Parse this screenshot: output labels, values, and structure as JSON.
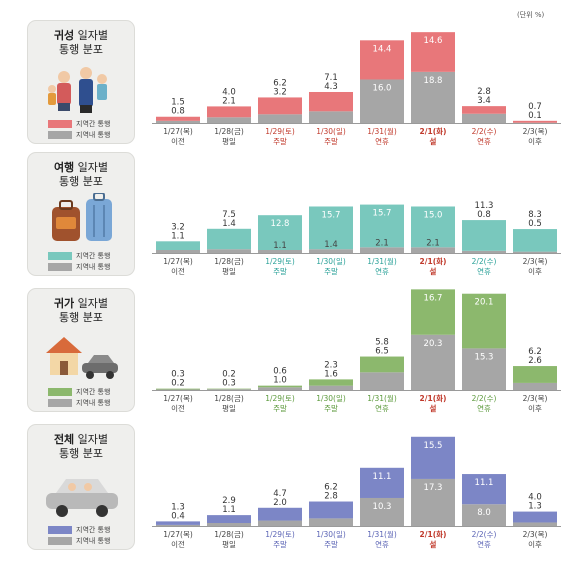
{
  "unit_label": "(단위 %)",
  "legend": {
    "inter": "지역간 통행",
    "intra": "지역내 통행"
  },
  "colors": {
    "intra": "#a6a6a6",
    "axis": "#9a9a9a",
    "date_weekday": "#444444",
    "date_holiday": "#c0392b",
    "date_weekend_teal": "#2aa198",
    "date_weekend_green": "#5c9a3c",
    "date_weekend_blue": "#5b64b5"
  },
  "chart_data": [
    {
      "type": "bar",
      "title_bold": "귀성",
      "title_rest": " 일자별",
      "title_line2": "통행 분포",
      "color_inter": "#e8777a",
      "categories": [
        "1/27(목)",
        "1/28(금)",
        "1/29(토)",
        "1/30(일)",
        "1/31(월)",
        "2/1(화)",
        "2/2(수)",
        "2/3(목)"
      ],
      "day_labels": [
        "이전",
        "평일",
        "주말",
        "주말",
        "연휴",
        "설",
        "연휴",
        "이후"
      ],
      "series": [
        {
          "name": "지역간 통행",
          "values": [
            1.5,
            4.0,
            6.2,
            7.1,
            14.4,
            14.6,
            2.8,
            0.7
          ]
        },
        {
          "name": "지역내 통행",
          "values": [
            0.8,
            2.1,
            3.2,
            4.3,
            16.0,
            18.8,
            3.4,
            0.1
          ]
        }
      ]
    },
    {
      "type": "bar",
      "title_bold": "여행",
      "title_rest": " 일자별",
      "title_line2": "통행 분포",
      "color_inter": "#79c8bd",
      "categories": [
        "1/27(목)",
        "1/28(금)",
        "1/29(토)",
        "1/30(일)",
        "1/31(월)",
        "2/1(화)",
        "2/2(수)",
        "2/3(목)"
      ],
      "day_labels": [
        "이전",
        "평일",
        "주말",
        "주말",
        "연휴",
        "설",
        "연휴",
        "이후"
      ],
      "series": [
        {
          "name": "지역간 통행",
          "values": [
            3.2,
            7.5,
            12.8,
            15.7,
            15.7,
            15.0,
            11.3,
            8.3
          ]
        },
        {
          "name": "지역내 통행",
          "values": [
            1.1,
            1.4,
            1.1,
            1.4,
            2.1,
            2.1,
            0.8,
            0.5
          ]
        }
      ]
    },
    {
      "type": "bar",
      "title_bold": "귀가",
      "title_rest": " 일자별",
      "title_line2": "통행 분포",
      "color_inter": "#8cb86d",
      "categories": [
        "1/27(목)",
        "1/28(금)",
        "1/29(토)",
        "1/30(일)",
        "1/31(월)",
        "2/1(화)",
        "2/2(수)",
        "2/3(목)"
      ],
      "day_labels": [
        "이전",
        "평일",
        "주말",
        "주말",
        "연휴",
        "설",
        "연휴",
        "이후"
      ],
      "series": [
        {
          "name": "지역간 통행",
          "values": [
            0.3,
            0.2,
            0.6,
            2.3,
            5.8,
            16.7,
            20.1,
            6.2
          ]
        },
        {
          "name": "지역내 통행",
          "values": [
            0.2,
            0.3,
            1.0,
            1.6,
            6.5,
            20.3,
            15.3,
            2.6
          ]
        }
      ]
    },
    {
      "type": "bar",
      "title_bold": "전체",
      "title_rest": " 일자별",
      "title_line2": "통행 분포",
      "color_inter": "#7c86c6",
      "categories": [
        "1/27(목)",
        "1/28(금)",
        "1/29(토)",
        "1/30(일)",
        "1/31(월)",
        "2/1(화)",
        "2/2(수)",
        "2/3(목)"
      ],
      "day_labels": [
        "이전",
        "평일",
        "주말",
        "주말",
        "연휴",
        "설",
        "연휴",
        "이후"
      ],
      "series": [
        {
          "name": "지역간 통행",
          "values": [
            1.3,
            2.9,
            4.7,
            6.2,
            11.1,
            15.5,
            11.1,
            4.0
          ]
        },
        {
          "name": "지역내 통행",
          "values": [
            0.4,
            1.1,
            2.0,
            2.8,
            10.3,
            17.3,
            8.0,
            1.3
          ]
        }
      ]
    }
  ]
}
